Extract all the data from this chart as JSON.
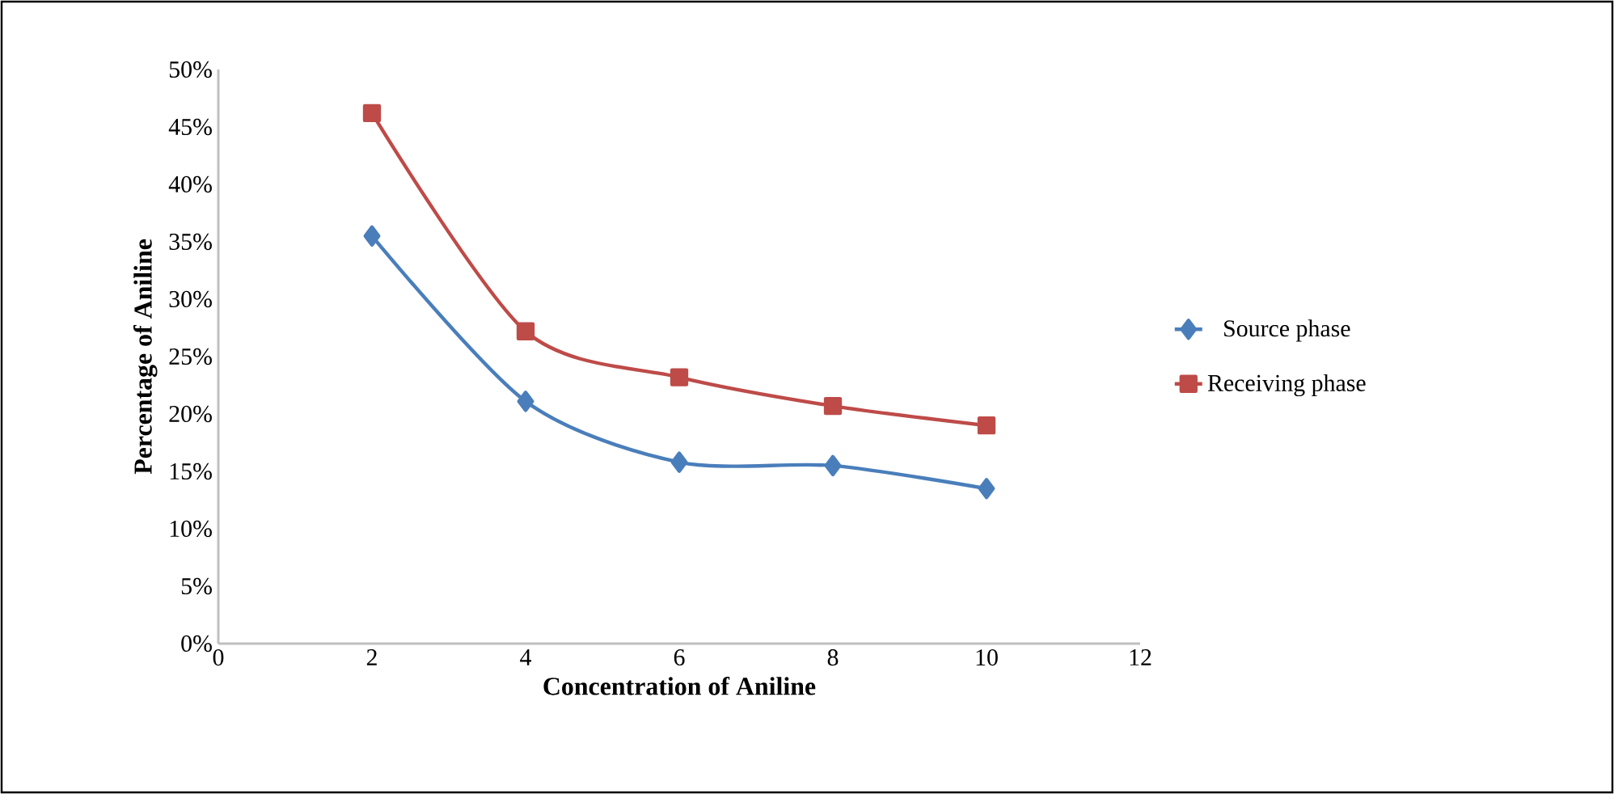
{
  "chart_data": {
    "type": "line",
    "xlabel": "Concentration of Aniline",
    "ylabel": "Percentage of Aniline",
    "x": [
      2,
      4,
      6,
      8,
      10
    ],
    "series": [
      {
        "name": "Source phase",
        "color": "#4a7ebb",
        "marker": "diamond",
        "values": [
          35.5,
          21.1,
          15.8,
          15.5,
          13.5
        ]
      },
      {
        "name": "Receiving phase",
        "color": "#be4b48",
        "marker": "square",
        "values": [
          46.2,
          27.2,
          23.2,
          20.7,
          19.0
        ]
      }
    ],
    "xlim": [
      0,
      12
    ],
    "xticks": [
      0,
      2,
      4,
      6,
      8,
      10,
      12
    ],
    "ylim": [
      0,
      50
    ],
    "yticks": [
      {
        "value": 0,
        "label": "0%"
      },
      {
        "value": 5,
        "label": "5%"
      },
      {
        "value": 10,
        "label": "10%"
      },
      {
        "value": 15,
        "label": "15%"
      },
      {
        "value": 20,
        "label": "20%"
      },
      {
        "value": 25,
        "label": "25%"
      },
      {
        "value": 30,
        "label": "30%"
      },
      {
        "value": 35,
        "label": "35%"
      },
      {
        "value": 40,
        "label": "40%"
      },
      {
        "value": 45,
        "label": "45%"
      },
      {
        "value": 50,
        "label": "50%"
      }
    ],
    "grid": false,
    "legend": "right",
    "line_style": "solid"
  }
}
